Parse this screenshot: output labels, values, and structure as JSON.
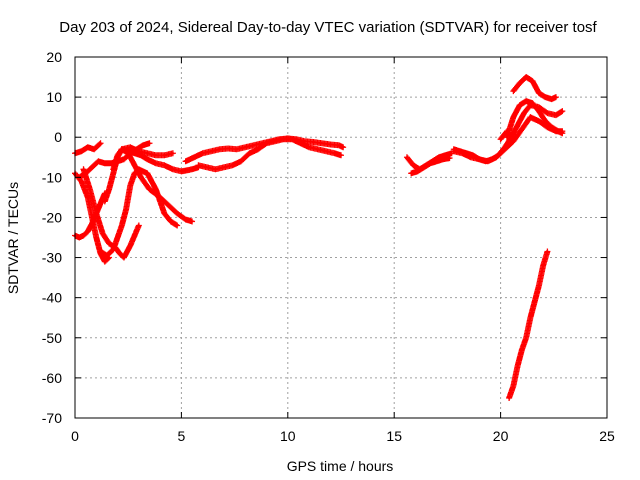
{
  "chart_data": {
    "type": "scatter",
    "title": "Day 203 of 2024, Sidereal Day-to-day VTEC variation (SDTVAR) for receiver tosf",
    "xlabel": "GPS time / hours",
    "ylabel": "SDTVAR / TECUs",
    "xlim": [
      0,
      25
    ],
    "ylim": [
      -70,
      20
    ],
    "xticks": [
      "0",
      "5",
      "10",
      "15",
      "20",
      "25"
    ],
    "yticks": [
      "20",
      "10",
      "0",
      "-10",
      "-20",
      "-30",
      "-40",
      "-50",
      "-60",
      "-70"
    ],
    "grid": true,
    "marker_color": "#ff0000",
    "series": [
      {
        "name": "trace-1",
        "x": [
          0.0,
          0.3,
          0.6,
          0.9,
          1.2
        ],
        "y": [
          -4,
          -3.5,
          -2.5,
          -3,
          -1.5
        ]
      },
      {
        "name": "trace-2",
        "x": [
          0.0,
          0.2,
          0.4,
          0.6,
          0.8,
          1.0,
          1.2,
          1.4
        ],
        "y": [
          -24.5,
          -25,
          -24.5,
          -23.5,
          -21.5,
          -19,
          -16.5,
          -14
        ]
      },
      {
        "name": "trace-3",
        "x": [
          0.0,
          0.3,
          0.6,
          0.8,
          1.0,
          1.2,
          1.4,
          1.6
        ],
        "y": [
          -9,
          -11,
          -15,
          -20,
          -25,
          -29,
          -31,
          -30
        ]
      },
      {
        "name": "trace-4",
        "x": [
          0.2,
          0.5,
          0.8,
          1.1,
          1.4,
          1.7,
          2.0,
          2.3,
          2.6,
          2.9,
          3.2,
          3.5
        ],
        "y": [
          -10,
          -9,
          -7.5,
          -6,
          -6.5,
          -6.5,
          -6,
          -5.5,
          -4,
          -3,
          -2,
          -1.5
        ]
      },
      {
        "name": "trace-5",
        "x": [
          0.4,
          0.7,
          1.0,
          1.3,
          1.6,
          1.9,
          2.1,
          2.3,
          2.6,
          3.0
        ],
        "y": [
          -8,
          -13,
          -19,
          -24,
          -26.5,
          -27.5,
          -29,
          -30,
          -27,
          -22
        ]
      },
      {
        "name": "trace-6",
        "x": [
          1.2,
          1.5,
          1.8,
          2.0,
          2.2,
          2.4,
          2.6,
          2.8,
          3.0,
          3.2,
          3.4,
          3.6,
          3.8,
          4.0,
          4.2,
          4.5,
          4.8
        ],
        "y": [
          -28.5,
          -29.5,
          -28,
          -25,
          -22,
          -18,
          -12,
          -9,
          -8,
          -8.5,
          -9,
          -11,
          -13,
          -16,
          -19,
          -21,
          -22
        ]
      },
      {
        "name": "trace-7",
        "x": [
          1.4,
          1.6,
          1.8,
          2.0,
          2.2,
          2.5,
          2.8,
          3.1,
          3.5,
          4.0,
          4.4,
          4.8,
          5.2,
          5.5
        ],
        "y": [
          -16,
          -13,
          -9,
          -5,
          -3,
          -4,
          -7,
          -10,
          -13,
          -15,
          -17,
          -19,
          -20.5,
          -21
        ]
      },
      {
        "name": "trace-8",
        "x": [
          1.8,
          2.0,
          2.2,
          2.5,
          2.8,
          3.1,
          3.4,
          3.8,
          4.2,
          4.6,
          5.0,
          5.5,
          5.8
        ],
        "y": [
          -8,
          -4.5,
          -3,
          -3.5,
          -4,
          -4.5,
          -5.5,
          -6.5,
          -7,
          -8,
          -8.5,
          -8,
          -7.5
        ]
      },
      {
        "name": "trace-9",
        "x": [
          2.2,
          2.6,
          3.0,
          3.4,
          3.8,
          4.2,
          4.6
        ],
        "y": [
          -3,
          -2.5,
          -3.5,
          -4,
          -4.5,
          -4.5,
          -4
        ]
      },
      {
        "name": "trace-10",
        "x": [
          5.2,
          5.6,
          6.0,
          6.4,
          6.8,
          7.2,
          7.6,
          8.0,
          8.4,
          8.8,
          9.2,
          9.6,
          10.0,
          10.4,
          10.8,
          11.2,
          11.6,
          12.0,
          12.4,
          12.6
        ],
        "y": [
          -6,
          -5,
          -4,
          -3.5,
          -3,
          -2.8,
          -3,
          -2.5,
          -2,
          -1.5,
          -1,
          -0.5,
          -0.3,
          -0.5,
          -1,
          -1.2,
          -1.5,
          -1.8,
          -2,
          -2.5
        ]
      },
      {
        "name": "trace-11",
        "x": [
          5.8,
          6.2,
          6.6,
          7.0,
          7.4,
          7.8,
          8.2,
          8.6,
          9.0,
          9.4,
          9.8,
          10.2,
          10.6,
          11.0,
          11.4,
          11.8,
          12.2,
          12.5
        ],
        "y": [
          -7,
          -7.5,
          -8,
          -7.5,
          -7,
          -6,
          -4,
          -3,
          -1.5,
          -1,
          -0.5,
          -0.5,
          -1.5,
          -2.5,
          -3,
          -3.5,
          -4,
          -4.5
        ]
      },
      {
        "name": "trace-12",
        "x": [
          15.6,
          15.9,
          16.2,
          16.5,
          16.8,
          17.1,
          17.4,
          17.7
        ],
        "y": [
          -5,
          -7,
          -8,
          -7,
          -6,
          -5,
          -4.5,
          -4
        ]
      },
      {
        "name": "trace-13",
        "x": [
          15.8,
          16.1,
          16.4,
          16.7,
          17.0,
          17.3,
          17.6
        ],
        "y": [
          -9,
          -8.5,
          -7.5,
          -6.5,
          -6,
          -5.5,
          -5.2
        ]
      },
      {
        "name": "trace-14",
        "x": [
          17.8,
          18.1,
          18.4,
          18.7,
          19.0,
          19.3,
          19.6,
          19.9,
          20.2,
          20.5,
          20.8,
          21.1,
          21.4,
          21.8,
          22.2,
          22.6,
          22.9
        ],
        "y": [
          -3,
          -3.5,
          -4,
          -4.5,
          -5.5,
          -6,
          -5.5,
          -4.5,
          -2.5,
          0,
          3,
          6,
          8,
          7.5,
          6,
          5.5,
          6.5
        ]
      },
      {
        "name": "trace-15",
        "x": [
          17.8,
          18.2,
          18.6,
          19.0,
          19.4,
          19.8,
          20.2,
          20.6,
          21.0,
          21.4,
          21.8,
          22.2,
          22.6,
          22.9
        ],
        "y": [
          -3.5,
          -4,
          -5,
          -5.5,
          -6,
          -5,
          -3,
          -1,
          2,
          5,
          4,
          2.5,
          1.5,
          1.5
        ]
      },
      {
        "name": "trace-16",
        "x": [
          20.3,
          20.6,
          20.9,
          21.2,
          21.5,
          21.8,
          22.1,
          22.4,
          22.7,
          22.9
        ],
        "y": [
          0,
          5,
          8,
          9,
          8.5,
          6.5,
          4,
          2.5,
          1.5,
          1
        ]
      },
      {
        "name": "trace-17",
        "x": [
          20.0,
          20.3
        ],
        "y": [
          -0.5,
          1.5
        ]
      },
      {
        "name": "trace-18",
        "x": [
          20.6,
          20.9,
          21.2,
          21.5,
          21.8,
          22.1,
          22.4,
          22.6
        ],
        "y": [
          11.5,
          13.5,
          15,
          14,
          11,
          10,
          9.5,
          10
        ]
      },
      {
        "name": "trace-19",
        "x": [
          20.4,
          20.6,
          20.8,
          21.0,
          21.2,
          21.4,
          21.6,
          21.8,
          22.0,
          22.2
        ],
        "y": [
          -65,
          -62,
          -57,
          -53,
          -50,
          -45,
          -41,
          -37,
          -32,
          -28.5
        ]
      }
    ]
  }
}
